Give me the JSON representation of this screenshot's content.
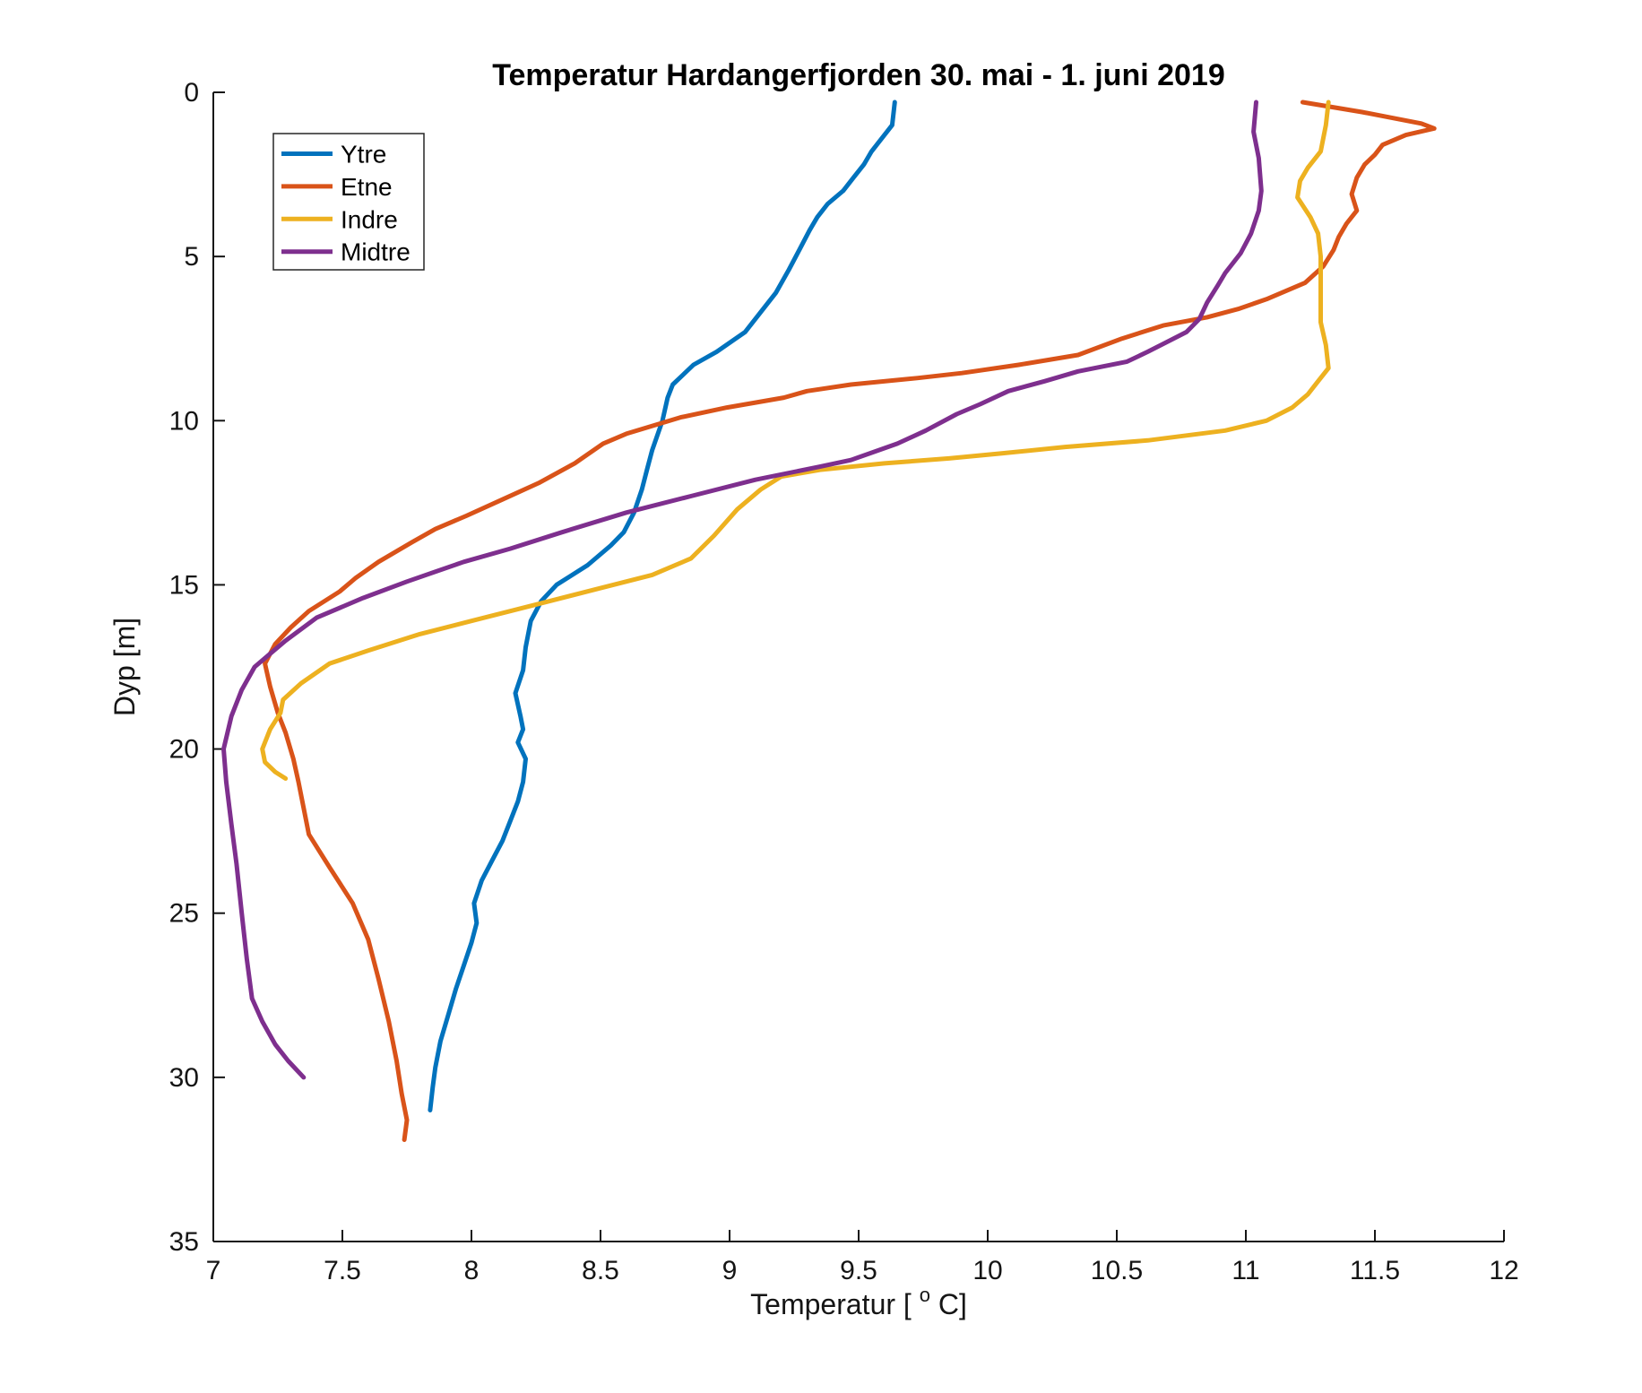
{
  "figure": {
    "title": "Temperatur Hardangerfjorden 30. mai - 1. juni 2019"
  },
  "labels": {
    "ylabel": "Dyp [m]",
    "xlabel": "Temperatur [°C]",
    "xlabel_prefix": "Temperatur [",
    "xlabel_sup": "o",
    "xlabel_suffix": " C]"
  },
  "legend": {
    "position": "top-left",
    "items": [
      {
        "label": "Ytre",
        "color": "#0072BD"
      },
      {
        "label": "Etne",
        "color": "#D95319"
      },
      {
        "label": "Indre",
        "color": "#EDB120"
      },
      {
        "label": "Midtre",
        "color": "#7E2F8E"
      }
    ]
  },
  "chart_data": {
    "type": "line",
    "title": "Temperatur Hardangerfjorden 30. mai - 1. juni 2019",
    "xlabel": "Temperatur [°C]",
    "ylabel": "Dyp [m]",
    "xlim": [
      7,
      12
    ],
    "ylim": [
      0,
      35
    ],
    "y_axis_reversed": true,
    "grid": false,
    "legend_position": "top-left",
    "xticks": [
      7,
      7.5,
      8,
      8.5,
      9,
      9.5,
      10,
      10.5,
      11,
      11.5,
      12
    ],
    "yticks": [
      0,
      5,
      10,
      15,
      20,
      25,
      30,
      35
    ],
    "x_units": "°C",
    "y_units": "m",
    "point_format": "[temperature_C, depth_m]",
    "series": [
      {
        "name": "Ytre",
        "color": "#0072BD",
        "points": [
          [
            9.64,
            0.3
          ],
          [
            9.63,
            1.0
          ],
          [
            9.58,
            1.5
          ],
          [
            9.55,
            1.8
          ],
          [
            9.52,
            2.2
          ],
          [
            9.48,
            2.6
          ],
          [
            9.44,
            3.0
          ],
          [
            9.38,
            3.4
          ],
          [
            9.34,
            3.8
          ],
          [
            9.31,
            4.2
          ],
          [
            9.27,
            4.8
          ],
          [
            9.23,
            5.4
          ],
          [
            9.18,
            6.1
          ],
          [
            9.11,
            6.8
          ],
          [
            9.06,
            7.3
          ],
          [
            8.95,
            7.9
          ],
          [
            8.86,
            8.3
          ],
          [
            8.82,
            8.6
          ],
          [
            8.78,
            8.9
          ],
          [
            8.76,
            9.3
          ],
          [
            8.74,
            10.0
          ],
          [
            8.7,
            10.9
          ],
          [
            8.68,
            11.5
          ],
          [
            8.66,
            12.1
          ],
          [
            8.63,
            12.8
          ],
          [
            8.59,
            13.4
          ],
          [
            8.54,
            13.8
          ],
          [
            8.45,
            14.4
          ],
          [
            8.33,
            15.0
          ],
          [
            8.27,
            15.5
          ],
          [
            8.23,
            16.1
          ],
          [
            8.21,
            16.9
          ],
          [
            8.2,
            17.6
          ],
          [
            8.17,
            18.3
          ],
          [
            8.19,
            19.0
          ],
          [
            8.2,
            19.4
          ],
          [
            8.18,
            19.8
          ],
          [
            8.21,
            20.3
          ],
          [
            8.2,
            21.0
          ],
          [
            8.18,
            21.6
          ],
          [
            8.15,
            22.2
          ],
          [
            8.12,
            22.8
          ],
          [
            8.08,
            23.4
          ],
          [
            8.04,
            24.0
          ],
          [
            8.01,
            24.7
          ],
          [
            8.02,
            25.3
          ],
          [
            8.0,
            25.9
          ],
          [
            7.97,
            26.6
          ],
          [
            7.94,
            27.3
          ],
          [
            7.91,
            28.1
          ],
          [
            7.88,
            28.9
          ],
          [
            7.86,
            29.7
          ],
          [
            7.85,
            30.3
          ],
          [
            7.84,
            31.0
          ]
        ]
      },
      {
        "name": "Etne",
        "color": "#D95319",
        "points": [
          [
            11.22,
            0.3
          ],
          [
            11.45,
            0.6
          ],
          [
            11.68,
            0.95
          ],
          [
            11.73,
            1.1
          ],
          [
            11.62,
            1.3
          ],
          [
            11.53,
            1.6
          ],
          [
            11.5,
            1.9
          ],
          [
            11.46,
            2.2
          ],
          [
            11.43,
            2.6
          ],
          [
            11.41,
            3.1
          ],
          [
            11.43,
            3.6
          ],
          [
            11.39,
            4.0
          ],
          [
            11.36,
            4.4
          ],
          [
            11.34,
            4.8
          ],
          [
            11.3,
            5.3
          ],
          [
            11.23,
            5.8
          ],
          [
            11.08,
            6.3
          ],
          [
            10.97,
            6.6
          ],
          [
            10.85,
            6.85
          ],
          [
            10.68,
            7.1
          ],
          [
            10.52,
            7.5
          ],
          [
            10.35,
            8.0
          ],
          [
            10.12,
            8.3
          ],
          [
            9.9,
            8.55
          ],
          [
            9.73,
            8.7
          ],
          [
            9.47,
            8.9
          ],
          [
            9.3,
            9.1
          ],
          [
            9.21,
            9.3
          ],
          [
            8.99,
            9.6
          ],
          [
            8.81,
            9.9
          ],
          [
            8.6,
            10.4
          ],
          [
            8.51,
            10.7
          ],
          [
            8.4,
            11.3
          ],
          [
            8.26,
            11.9
          ],
          [
            8.12,
            12.4
          ],
          [
            7.98,
            12.9
          ],
          [
            7.86,
            13.3
          ],
          [
            7.77,
            13.7
          ],
          [
            7.64,
            14.3
          ],
          [
            7.55,
            14.8
          ],
          [
            7.49,
            15.2
          ],
          [
            7.37,
            15.8
          ],
          [
            7.3,
            16.3
          ],
          [
            7.24,
            16.8
          ],
          [
            7.2,
            17.4
          ],
          [
            7.22,
            18.1
          ],
          [
            7.25,
            18.9
          ],
          [
            7.28,
            19.5
          ],
          [
            7.31,
            20.3
          ],
          [
            7.33,
            21.0
          ],
          [
            7.35,
            21.8
          ],
          [
            7.37,
            22.6
          ],
          [
            7.45,
            23.6
          ],
          [
            7.54,
            24.7
          ],
          [
            7.6,
            25.8
          ],
          [
            7.64,
            27.0
          ],
          [
            7.68,
            28.3
          ],
          [
            7.71,
            29.5
          ],
          [
            7.73,
            30.5
          ],
          [
            7.75,
            31.3
          ],
          [
            7.74,
            31.9
          ]
        ]
      },
      {
        "name": "Indre",
        "color": "#EDB120",
        "points": [
          [
            11.32,
            0.3
          ],
          [
            11.31,
            1.0
          ],
          [
            11.29,
            1.8
          ],
          [
            11.24,
            2.3
          ],
          [
            11.21,
            2.7
          ],
          [
            11.2,
            3.2
          ],
          [
            11.25,
            3.8
          ],
          [
            11.28,
            4.3
          ],
          [
            11.29,
            5.0
          ],
          [
            11.29,
            6.0
          ],
          [
            11.29,
            7.0
          ],
          [
            11.31,
            7.7
          ],
          [
            11.32,
            8.4
          ],
          [
            11.28,
            8.8
          ],
          [
            11.24,
            9.2
          ],
          [
            11.18,
            9.6
          ],
          [
            11.08,
            10.0
          ],
          [
            10.92,
            10.3
          ],
          [
            10.62,
            10.6
          ],
          [
            10.3,
            10.8
          ],
          [
            10.05,
            11.0
          ],
          [
            9.85,
            11.15
          ],
          [
            9.6,
            11.3
          ],
          [
            9.35,
            11.5
          ],
          [
            9.2,
            11.7
          ],
          [
            9.12,
            12.1
          ],
          [
            9.03,
            12.7
          ],
          [
            8.94,
            13.5
          ],
          [
            8.85,
            14.2
          ],
          [
            8.7,
            14.7
          ],
          [
            8.5,
            15.1
          ],
          [
            8.25,
            15.6
          ],
          [
            8.0,
            16.1
          ],
          [
            7.8,
            16.5
          ],
          [
            7.6,
            17.0
          ],
          [
            7.45,
            17.4
          ],
          [
            7.34,
            18.0
          ],
          [
            7.27,
            18.5
          ],
          [
            7.26,
            18.9
          ],
          [
            7.22,
            19.4
          ],
          [
            7.19,
            20.0
          ],
          [
            7.2,
            20.4
          ],
          [
            7.24,
            20.7
          ],
          [
            7.28,
            20.9
          ]
        ]
      },
      {
        "name": "Midtre",
        "color": "#7E2F8E",
        "points": [
          [
            11.04,
            0.3
          ],
          [
            11.03,
            1.2
          ],
          [
            11.05,
            2.0
          ],
          [
            11.06,
            3.0
          ],
          [
            11.05,
            3.6
          ],
          [
            11.02,
            4.3
          ],
          [
            10.98,
            4.9
          ],
          [
            10.92,
            5.5
          ],
          [
            10.89,
            5.9
          ],
          [
            10.85,
            6.4
          ],
          [
            10.82,
            6.9
          ],
          [
            10.77,
            7.3
          ],
          [
            10.62,
            7.9
          ],
          [
            10.54,
            8.2
          ],
          [
            10.35,
            8.5
          ],
          [
            10.22,
            8.8
          ],
          [
            10.08,
            9.1
          ],
          [
            9.97,
            9.5
          ],
          [
            9.88,
            9.8
          ],
          [
            9.76,
            10.3
          ],
          [
            9.65,
            10.7
          ],
          [
            9.47,
            11.2
          ],
          [
            9.35,
            11.4
          ],
          [
            9.1,
            11.8
          ],
          [
            8.85,
            12.3
          ],
          [
            8.6,
            12.8
          ],
          [
            8.35,
            13.4
          ],
          [
            8.15,
            13.9
          ],
          [
            7.97,
            14.3
          ],
          [
            7.75,
            14.9
          ],
          [
            7.58,
            15.4
          ],
          [
            7.4,
            16.0
          ],
          [
            7.28,
            16.7
          ],
          [
            7.16,
            17.5
          ],
          [
            7.11,
            18.2
          ],
          [
            7.07,
            19.0
          ],
          [
            7.04,
            20.0
          ],
          [
            7.05,
            21.0
          ],
          [
            7.07,
            22.3
          ],
          [
            7.09,
            23.5
          ],
          [
            7.11,
            25.0
          ],
          [
            7.13,
            26.4
          ],
          [
            7.15,
            27.6
          ],
          [
            7.19,
            28.3
          ],
          [
            7.24,
            29.0
          ],
          [
            7.29,
            29.5
          ],
          [
            7.35,
            30.0
          ]
        ]
      }
    ]
  }
}
